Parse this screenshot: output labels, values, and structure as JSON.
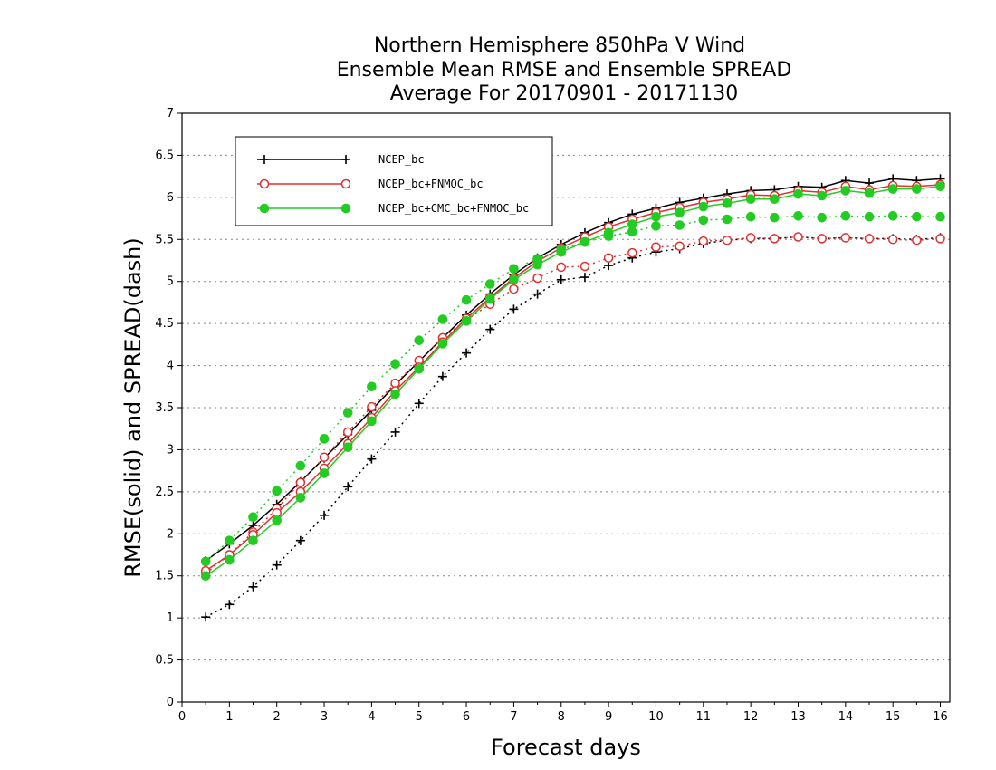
{
  "chart_data": {
    "type": "line",
    "title": [
      "Northern Hemisphere 850hPa V Wind",
      "Ensemble Mean RMSE and Ensemble SPREAD",
      "Average For 20170901 - 20171130"
    ],
    "xlabel": "Forecast days",
    "ylabel": "RMSE(solid) and SPREAD(dash)",
    "xlim": [
      0,
      16.2
    ],
    "ylim": [
      0,
      7
    ],
    "xticks": [
      0,
      1,
      2,
      3,
      4,
      5,
      6,
      7,
      8,
      9,
      10,
      11,
      12,
      13,
      14,
      15,
      16
    ],
    "yticks": [
      0,
      0.5,
      1,
      1.5,
      2,
      2.5,
      3,
      3.5,
      4,
      4.5,
      5,
      5.5,
      6,
      6.5,
      7
    ],
    "grid": "horizontal-dotted",
    "legend_position": "top-left",
    "x": [
      0.5,
      1,
      1.5,
      2,
      2.5,
      3,
      3.5,
      4,
      4.5,
      5,
      5.5,
      6,
      6.5,
      7,
      7.5,
      8,
      8.5,
      9,
      9.5,
      10,
      10.5,
      11,
      11.5,
      12,
      12.5,
      13,
      13.5,
      14,
      14.5,
      15,
      15.5,
      16
    ],
    "series": [
      {
        "name": "NCEP_bc",
        "color": "#000000",
        "marker": "plus",
        "rmse": [
          1.68,
          1.88,
          2.1,
          2.35,
          2.62,
          2.9,
          3.18,
          3.47,
          3.77,
          4.05,
          4.33,
          4.6,
          4.85,
          5.08,
          5.28,
          5.44,
          5.58,
          5.7,
          5.8,
          5.87,
          5.94,
          5.99,
          6.04,
          6.08,
          6.09,
          6.13,
          6.12,
          6.2,
          6.17,
          6.22,
          6.2,
          6.22
        ],
        "spread": [
          1.01,
          1.16,
          1.37,
          1.63,
          1.92,
          2.22,
          2.56,
          2.89,
          3.21,
          3.55,
          3.87,
          4.15,
          4.43,
          4.67,
          4.85,
          5.02,
          5.05,
          5.19,
          5.28,
          5.35,
          5.39,
          5.45,
          5.49,
          5.51,
          5.51,
          5.53,
          5.51,
          5.52,
          5.51,
          5.51,
          5.5,
          5.52
        ]
      },
      {
        "name": "NCEP_bc+FNMOC_bc",
        "color": "#e03030",
        "marker": "open-circle",
        "rmse": [
          1.56,
          1.75,
          1.99,
          2.25,
          2.5,
          2.78,
          3.07,
          3.38,
          3.7,
          3.98,
          4.28,
          4.56,
          4.81,
          5.04,
          5.24,
          5.4,
          5.53,
          5.65,
          5.74,
          5.82,
          5.88,
          5.94,
          5.98,
          6.03,
          6.02,
          6.08,
          6.06,
          6.13,
          6.09,
          6.14,
          6.13,
          6.15
        ],
        "spread": [
          1.53,
          1.75,
          2.02,
          2.3,
          2.61,
          2.91,
          3.21,
          3.51,
          3.79,
          4.06,
          4.33,
          4.54,
          4.73,
          4.91,
          5.04,
          5.17,
          5.18,
          5.28,
          5.34,
          5.41,
          5.42,
          5.48,
          5.49,
          5.52,
          5.51,
          5.53,
          5.51,
          5.52,
          5.51,
          5.5,
          5.49,
          5.51
        ]
      },
      {
        "name": "NCEP_bc+CMC_bc+FNMOC_bc",
        "color": "#22cc22",
        "marker": "filled-circle",
        "rmse": [
          1.5,
          1.69,
          1.92,
          2.16,
          2.43,
          2.72,
          3.03,
          3.34,
          3.66,
          3.96,
          4.26,
          4.53,
          4.79,
          5.02,
          5.2,
          5.35,
          5.47,
          5.58,
          5.68,
          5.77,
          5.82,
          5.89,
          5.93,
          5.98,
          5.98,
          6.04,
          6.02,
          6.08,
          6.05,
          6.1,
          6.1,
          6.13
        ],
        "spread": [
          1.67,
          1.92,
          2.2,
          2.51,
          2.81,
          3.13,
          3.44,
          3.75,
          4.02,
          4.3,
          4.55,
          4.78,
          4.97,
          5.15,
          5.27,
          5.38,
          5.47,
          5.54,
          5.59,
          5.66,
          5.67,
          5.73,
          5.74,
          5.77,
          5.76,
          5.78,
          5.76,
          5.78,
          5.77,
          5.78,
          5.77,
          5.77
        ]
      }
    ]
  }
}
